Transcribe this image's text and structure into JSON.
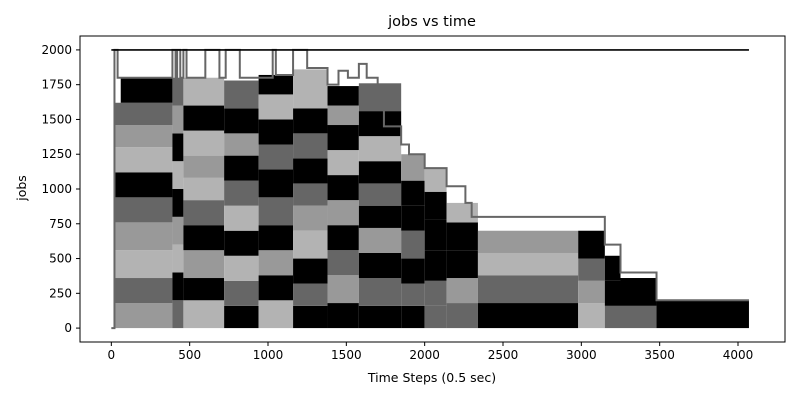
{
  "chart_data": {
    "type": "area",
    "title": "jobs vs time",
    "xlabel": "Time Steps (0.5 sec)",
    "ylabel": "jobs",
    "xlim": [
      -200,
      4300
    ],
    "ylim": [
      -100,
      2100
    ],
    "xticks": [
      0,
      500,
      1000,
      1500,
      2000,
      2500,
      3000,
      3500,
      4000
    ],
    "yticks": [
      0,
      250,
      500,
      750,
      1000,
      1250,
      1500,
      1750,
      2000
    ],
    "grid": false,
    "legend": "none",
    "colors": {
      "black": "#000000",
      "dark_gray": "#666666",
      "mid_gray": "#999999",
      "light_gray": "#b3b3b3",
      "outline": "#666666",
      "capacity_line": "#000000"
    },
    "capacity_level": 2000,
    "total_jobs_envelope": {
      "x": [
        0,
        20,
        20,
        40,
        40,
        390,
        390,
        410,
        410,
        420,
        420,
        440,
        440,
        460,
        460,
        480,
        480,
        600,
        600,
        690,
        690,
        730,
        730,
        820,
        820,
        1030,
        1030,
        1050,
        1050,
        1160,
        1160,
        1250,
        1250,
        1380,
        1380,
        1450,
        1450,
        1510,
        1510,
        1580,
        1580,
        1630,
        1630,
        1700,
        1700,
        1740,
        1740,
        1850,
        1850,
        1900,
        1900,
        2000,
        2000,
        2140,
        2140,
        2260,
        2260,
        2300,
        2300,
        2340,
        2340,
        3150,
        3150,
        3250,
        3250,
        3480,
        3480,
        4070
      ],
      "y": [
        0,
        0,
        2000,
        2000,
        1800,
        1800,
        2000,
        2000,
        1800,
        1800,
        2000,
        2000,
        1800,
        1800,
        2000,
        2000,
        1800,
        1800,
        2000,
        2000,
        1800,
        1800,
        2000,
        2000,
        1800,
        1800,
        2000,
        2000,
        1820,
        1820,
        2000,
        2000,
        1870,
        1870,
        1750,
        1750,
        1850,
        1850,
        1800,
        1800,
        1900,
        1900,
        1800,
        1800,
        1600,
        1600,
        1450,
        1450,
        1320,
        1320,
        1250,
        1250,
        1150,
        1150,
        1020,
        1020,
        900,
        900,
        800,
        800,
        800,
        800,
        600,
        600,
        400,
        400,
        200,
        200
      ]
    },
    "job_blocks": [
      {
        "x0": 20,
        "x1": 390,
        "y0": 0,
        "y1": 180,
        "shade": "mid_gray"
      },
      {
        "x0": 20,
        "x1": 390,
        "y0": 180,
        "y1": 360,
        "shade": "dark_gray"
      },
      {
        "x0": 20,
        "x1": 390,
        "y0": 360,
        "y1": 560,
        "shade": "light_gray"
      },
      {
        "x0": 20,
        "x1": 390,
        "y0": 560,
        "y1": 760,
        "shade": "mid_gray"
      },
      {
        "x0": 20,
        "x1": 390,
        "y0": 760,
        "y1": 940,
        "shade": "dark_gray"
      },
      {
        "x0": 20,
        "x1": 390,
        "y0": 940,
        "y1": 1120,
        "shade": "black"
      },
      {
        "x0": 20,
        "x1": 390,
        "y0": 1120,
        "y1": 1300,
        "shade": "light_gray"
      },
      {
        "x0": 20,
        "x1": 390,
        "y0": 1300,
        "y1": 1460,
        "shade": "mid_gray"
      },
      {
        "x0": 20,
        "x1": 390,
        "y0": 1460,
        "y1": 1620,
        "shade": "dark_gray"
      },
      {
        "x0": 60,
        "x1": 390,
        "y0": 1620,
        "y1": 1800,
        "shade": "black"
      },
      {
        "x0": 390,
        "x1": 460,
        "y0": 0,
        "y1": 200,
        "shade": "dark_gray"
      },
      {
        "x0": 390,
        "x1": 460,
        "y0": 200,
        "y1": 400,
        "shade": "black"
      },
      {
        "x0": 390,
        "x1": 460,
        "y0": 400,
        "y1": 600,
        "shade": "light_gray"
      },
      {
        "x0": 390,
        "x1": 460,
        "y0": 600,
        "y1": 800,
        "shade": "mid_gray"
      },
      {
        "x0": 390,
        "x1": 460,
        "y0": 800,
        "y1": 1000,
        "shade": "black"
      },
      {
        "x0": 390,
        "x1": 460,
        "y0": 1000,
        "y1": 1200,
        "shade": "light_gray"
      },
      {
        "x0": 390,
        "x1": 460,
        "y0": 1200,
        "y1": 1400,
        "shade": "black"
      },
      {
        "x0": 390,
        "x1": 460,
        "y0": 1400,
        "y1": 1600,
        "shade": "mid_gray"
      },
      {
        "x0": 390,
        "x1": 460,
        "y0": 1600,
        "y1": 1800,
        "shade": "dark_gray"
      },
      {
        "x0": 460,
        "x1": 720,
        "y0": 0,
        "y1": 200,
        "shade": "light_gray"
      },
      {
        "x0": 460,
        "x1": 720,
        "y0": 200,
        "y1": 360,
        "shade": "black"
      },
      {
        "x0": 460,
        "x1": 720,
        "y0": 360,
        "y1": 560,
        "shade": "mid_gray"
      },
      {
        "x0": 460,
        "x1": 720,
        "y0": 560,
        "y1": 740,
        "shade": "black"
      },
      {
        "x0": 460,
        "x1": 720,
        "y0": 740,
        "y1": 920,
        "shade": "dark_gray"
      },
      {
        "x0": 460,
        "x1": 720,
        "y0": 920,
        "y1": 1080,
        "shade": "light_gray"
      },
      {
        "x0": 460,
        "x1": 720,
        "y0": 1080,
        "y1": 1240,
        "shade": "mid_gray"
      },
      {
        "x0": 460,
        "x1": 720,
        "y0": 1240,
        "y1": 1420,
        "shade": "light_gray"
      },
      {
        "x0": 460,
        "x1": 720,
        "y0": 1420,
        "y1": 1600,
        "shade": "black"
      },
      {
        "x0": 460,
        "x1": 720,
        "y0": 1600,
        "y1": 1800,
        "shade": "light_gray"
      },
      {
        "x0": 720,
        "x1": 940,
        "y0": 0,
        "y1": 160,
        "shade": "black"
      },
      {
        "x0": 720,
        "x1": 940,
        "y0": 160,
        "y1": 340,
        "shade": "dark_gray"
      },
      {
        "x0": 720,
        "x1": 940,
        "y0": 340,
        "y1": 520,
        "shade": "light_gray"
      },
      {
        "x0": 720,
        "x1": 940,
        "y0": 520,
        "y1": 700,
        "shade": "black"
      },
      {
        "x0": 720,
        "x1": 940,
        "y0": 700,
        "y1": 880,
        "shade": "light_gray"
      },
      {
        "x0": 720,
        "x1": 940,
        "y0": 880,
        "y1": 1060,
        "shade": "dark_gray"
      },
      {
        "x0": 720,
        "x1": 940,
        "y0": 1060,
        "y1": 1240,
        "shade": "black"
      },
      {
        "x0": 720,
        "x1": 940,
        "y0": 1240,
        "y1": 1400,
        "shade": "mid_gray"
      },
      {
        "x0": 720,
        "x1": 940,
        "y0": 1400,
        "y1": 1580,
        "shade": "black"
      },
      {
        "x0": 720,
        "x1": 940,
        "y0": 1580,
        "y1": 1780,
        "shade": "dark_gray"
      },
      {
        "x0": 940,
        "x1": 1160,
        "y0": 0,
        "y1": 200,
        "shade": "light_gray"
      },
      {
        "x0": 940,
        "x1": 1160,
        "y0": 200,
        "y1": 380,
        "shade": "black"
      },
      {
        "x0": 940,
        "x1": 1160,
        "y0": 380,
        "y1": 560,
        "shade": "mid_gray"
      },
      {
        "x0": 940,
        "x1": 1160,
        "y0": 560,
        "y1": 740,
        "shade": "black"
      },
      {
        "x0": 940,
        "x1": 1160,
        "y0": 740,
        "y1": 940,
        "shade": "dark_gray"
      },
      {
        "x0": 940,
        "x1": 1160,
        "y0": 940,
        "y1": 1140,
        "shade": "black"
      },
      {
        "x0": 940,
        "x1": 1160,
        "y0": 1140,
        "y1": 1320,
        "shade": "dark_gray"
      },
      {
        "x0": 940,
        "x1": 1160,
        "y0": 1320,
        "y1": 1500,
        "shade": "black"
      },
      {
        "x0": 940,
        "x1": 1160,
        "y0": 1500,
        "y1": 1680,
        "shade": "light_gray"
      },
      {
        "x0": 940,
        "x1": 1160,
        "y0": 1680,
        "y1": 1820,
        "shade": "black"
      },
      {
        "x0": 1160,
        "x1": 1380,
        "y0": 0,
        "y1": 160,
        "shade": "black"
      },
      {
        "x0": 1160,
        "x1": 1380,
        "y0": 160,
        "y1": 320,
        "shade": "dark_gray"
      },
      {
        "x0": 1160,
        "x1": 1380,
        "y0": 320,
        "y1": 500,
        "shade": "black"
      },
      {
        "x0": 1160,
        "x1": 1380,
        "y0": 500,
        "y1": 700,
        "shade": "light_gray"
      },
      {
        "x0": 1160,
        "x1": 1380,
        "y0": 700,
        "y1": 880,
        "shade": "mid_gray"
      },
      {
        "x0": 1160,
        "x1": 1380,
        "y0": 880,
        "y1": 1040,
        "shade": "dark_gray"
      },
      {
        "x0": 1160,
        "x1": 1380,
        "y0": 1040,
        "y1": 1220,
        "shade": "black"
      },
      {
        "x0": 1160,
        "x1": 1380,
        "y0": 1220,
        "y1": 1400,
        "shade": "dark_gray"
      },
      {
        "x0": 1160,
        "x1": 1380,
        "y0": 1400,
        "y1": 1580,
        "shade": "black"
      },
      {
        "x0": 1160,
        "x1": 1380,
        "y0": 1580,
        "y1": 1860,
        "shade": "light_gray"
      },
      {
        "x0": 1380,
        "x1": 1580,
        "y0": 0,
        "y1": 180,
        "shade": "black"
      },
      {
        "x0": 1380,
        "x1": 1580,
        "y0": 180,
        "y1": 380,
        "shade": "mid_gray"
      },
      {
        "x0": 1380,
        "x1": 1580,
        "y0": 380,
        "y1": 560,
        "shade": "dark_gray"
      },
      {
        "x0": 1380,
        "x1": 1580,
        "y0": 560,
        "y1": 740,
        "shade": "black"
      },
      {
        "x0": 1380,
        "x1": 1580,
        "y0": 740,
        "y1": 920,
        "shade": "mid_gray"
      },
      {
        "x0": 1380,
        "x1": 1580,
        "y0": 920,
        "y1": 1100,
        "shade": "black"
      },
      {
        "x0": 1380,
        "x1": 1580,
        "y0": 1100,
        "y1": 1280,
        "shade": "light_gray"
      },
      {
        "x0": 1380,
        "x1": 1580,
        "y0": 1280,
        "y1": 1460,
        "shade": "black"
      },
      {
        "x0": 1380,
        "x1": 1580,
        "y0": 1460,
        "y1": 1600,
        "shade": "mid_gray"
      },
      {
        "x0": 1380,
        "x1": 1580,
        "y0": 1600,
        "y1": 1740,
        "shade": "black"
      },
      {
        "x0": 1580,
        "x1": 1850,
        "y0": 0,
        "y1": 160,
        "shade": "black"
      },
      {
        "x0": 1580,
        "x1": 1850,
        "y0": 160,
        "y1": 360,
        "shade": "dark_gray"
      },
      {
        "x0": 1580,
        "x1": 1850,
        "y0": 360,
        "y1": 540,
        "shade": "black"
      },
      {
        "x0": 1580,
        "x1": 1850,
        "y0": 540,
        "y1": 720,
        "shade": "mid_gray"
      },
      {
        "x0": 1580,
        "x1": 1850,
        "y0": 720,
        "y1": 880,
        "shade": "black"
      },
      {
        "x0": 1580,
        "x1": 1850,
        "y0": 880,
        "y1": 1040,
        "shade": "dark_gray"
      },
      {
        "x0": 1580,
        "x1": 1850,
        "y0": 1040,
        "y1": 1200,
        "shade": "black"
      },
      {
        "x0": 1580,
        "x1": 1850,
        "y0": 1200,
        "y1": 1380,
        "shade": "light_gray"
      },
      {
        "x0": 1580,
        "x1": 1850,
        "y0": 1380,
        "y1": 1560,
        "shade": "black"
      },
      {
        "x0": 1580,
        "x1": 1850,
        "y0": 1560,
        "y1": 1760,
        "shade": "dark_gray"
      },
      {
        "x0": 1850,
        "x1": 2000,
        "y0": 0,
        "y1": 160,
        "shade": "black"
      },
      {
        "x0": 1850,
        "x1": 2000,
        "y0": 160,
        "y1": 320,
        "shade": "dark_gray"
      },
      {
        "x0": 1850,
        "x1": 2000,
        "y0": 320,
        "y1": 500,
        "shade": "black"
      },
      {
        "x0": 1850,
        "x1": 2000,
        "y0": 500,
        "y1": 700,
        "shade": "dark_gray"
      },
      {
        "x0": 1850,
        "x1": 2000,
        "y0": 700,
        "y1": 880,
        "shade": "black"
      },
      {
        "x0": 1850,
        "x1": 2000,
        "y0": 880,
        "y1": 1060,
        "shade": "black"
      },
      {
        "x0": 1850,
        "x1": 2000,
        "y0": 1060,
        "y1": 1250,
        "shade": "mid_gray"
      },
      {
        "x0": 2000,
        "x1": 2140,
        "y0": 0,
        "y1": 160,
        "shade": "dark_gray"
      },
      {
        "x0": 2000,
        "x1": 2140,
        "y0": 160,
        "y1": 340,
        "shade": "dark_gray"
      },
      {
        "x0": 2000,
        "x1": 2140,
        "y0": 340,
        "y1": 560,
        "shade": "black"
      },
      {
        "x0": 2000,
        "x1": 2140,
        "y0": 560,
        "y1": 780,
        "shade": "black"
      },
      {
        "x0": 2000,
        "x1": 2140,
        "y0": 780,
        "y1": 980,
        "shade": "black"
      },
      {
        "x0": 2000,
        "x1": 2140,
        "y0": 980,
        "y1": 1150,
        "shade": "light_gray"
      },
      {
        "x0": 2140,
        "x1": 2340,
        "y0": 0,
        "y1": 180,
        "shade": "dark_gray"
      },
      {
        "x0": 2140,
        "x1": 2340,
        "y0": 180,
        "y1": 360,
        "shade": "mid_gray"
      },
      {
        "x0": 2140,
        "x1": 2340,
        "y0": 360,
        "y1": 560,
        "shade": "black"
      },
      {
        "x0": 2140,
        "x1": 2340,
        "y0": 560,
        "y1": 760,
        "shade": "black"
      },
      {
        "x0": 2140,
        "x1": 2340,
        "y0": 760,
        "y1": 900,
        "shade": "light_gray"
      },
      {
        "x0": 2340,
        "x1": 2980,
        "y0": 0,
        "y1": 180,
        "shade": "black"
      },
      {
        "x0": 2340,
        "x1": 2980,
        "y0": 180,
        "y1": 380,
        "shade": "dark_gray"
      },
      {
        "x0": 2340,
        "x1": 2980,
        "y0": 380,
        "y1": 540,
        "shade": "light_gray"
      },
      {
        "x0": 2340,
        "x1": 2980,
        "y0": 540,
        "y1": 700,
        "shade": "mid_gray"
      },
      {
        "x0": 2980,
        "x1": 3150,
        "y0": 0,
        "y1": 180,
        "shade": "light_gray"
      },
      {
        "x0": 2980,
        "x1": 3150,
        "y0": 180,
        "y1": 340,
        "shade": "mid_gray"
      },
      {
        "x0": 2980,
        "x1": 3150,
        "y0": 340,
        "y1": 500,
        "shade": "dark_gray"
      },
      {
        "x0": 2980,
        "x1": 3150,
        "y0": 500,
        "y1": 700,
        "shade": "black"
      },
      {
        "x0": 3150,
        "x1": 3250,
        "y0": 0,
        "y1": 160,
        "shade": "dark_gray"
      },
      {
        "x0": 3150,
        "x1": 3250,
        "y0": 160,
        "y1": 340,
        "shade": "black"
      },
      {
        "x0": 3150,
        "x1": 3250,
        "y0": 340,
        "y1": 520,
        "shade": "black"
      },
      {
        "x0": 3250,
        "x1": 3480,
        "y0": 0,
        "y1": 160,
        "shade": "dark_gray"
      },
      {
        "x0": 3250,
        "x1": 3480,
        "y0": 160,
        "y1": 360,
        "shade": "black"
      },
      {
        "x0": 3480,
        "x1": 4070,
        "y0": 0,
        "y1": 200,
        "shade": "black"
      }
    ]
  }
}
